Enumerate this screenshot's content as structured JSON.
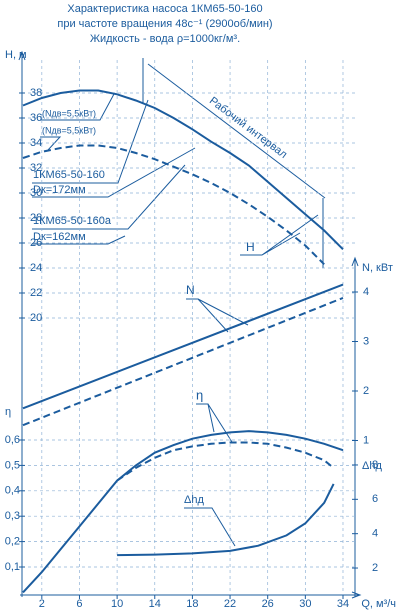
{
  "chart_data": {
    "type": "line",
    "title_lines": [
      "Характеристика насоса 1КМ65-50-160",
      "при частоте вращения 48с⁻¹ (2900об/мин)",
      "Жидкость - вода ρ=1000кг/м³."
    ],
    "x_label": "Q, м³/ч",
    "xlim": [
      0,
      35
    ],
    "xticks": [
      2,
      6,
      10,
      14,
      18,
      22,
      26,
      30,
      34
    ],
    "grid": true,
    "color": "#1b5c9e",
    "axes": [
      {
        "label": "H, м",
        "side": "left",
        "lim": [
          19,
          40
        ],
        "ticks": [
          20,
          22,
          24,
          26,
          28,
          30,
          32,
          34,
          36,
          38
        ]
      },
      {
        "label": "N, кВт",
        "side": "right",
        "lim": [
          0.8,
          4.5
        ],
        "ticks": [
          1,
          2,
          3,
          4
        ]
      },
      {
        "label": "η",
        "side": "left",
        "lim": [
          0,
          0.7
        ],
        "ticks": [
          {
            "value": 0.1,
            "label": "0,1"
          },
          {
            "value": 0.2,
            "label": "0,2"
          },
          {
            "value": 0.3,
            "label": "0,3"
          },
          {
            "value": 0.4,
            "label": "0,4"
          },
          {
            "value": 0.5,
            "label": "0,5"
          },
          {
            "value": 0.6,
            "label": "0,6"
          }
        ]
      },
      {
        "label": "Δhд",
        "side": "right",
        "lim": [
          0.5,
          9.5
        ],
        "ticks": [
          2,
          4,
          6,
          8
        ]
      }
    ],
    "series": [
      {
        "axis": 0,
        "style": "solid",
        "x": [
          0,
          2,
          4,
          6,
          8,
          10,
          12,
          14,
          16,
          18,
          20,
          22,
          24,
          26,
          28,
          30,
          32,
          34
        ],
        "values": [
          37.0,
          37.6,
          38.0,
          38.2,
          38.2,
          37.9,
          37.4,
          36.8,
          36.0,
          35.1,
          34.1,
          33.2,
          32.2,
          30.9,
          29.6,
          28.3,
          27.0,
          25.5
        ]
      },
      {
        "axis": 0,
        "style": "dashed",
        "x": [
          0,
          2,
          4,
          6,
          8,
          10,
          12,
          14,
          16,
          18,
          20,
          22,
          24,
          26,
          28,
          30,
          32
        ],
        "values": [
          32.8,
          33.3,
          33.6,
          33.8,
          33.8,
          33.6,
          33.2,
          32.7,
          32.1,
          31.5,
          30.8,
          30.0,
          29.1,
          28.1,
          27.0,
          25.8,
          24.3
        ]
      },
      {
        "axis": 1,
        "style": "solid",
        "x": [
          0,
          34
        ],
        "values": [
          1.65,
          4.15
        ]
      },
      {
        "axis": 1,
        "style": "dashed",
        "x": [
          0,
          34
        ],
        "values": [
          1.31,
          3.88
        ]
      },
      {
        "axis": 2,
        "style": "solid",
        "x": [
          0,
          2,
          4,
          6,
          8,
          10,
          12,
          14,
          16,
          18,
          20,
          22,
          24,
          26,
          28,
          30,
          32,
          34
        ],
        "values": [
          0,
          0.08,
          0.17,
          0.26,
          0.35,
          0.44,
          0.5,
          0.55,
          0.58,
          0.605,
          0.62,
          0.63,
          0.635,
          0.63,
          0.62,
          0.605,
          0.585,
          0.56
        ]
      },
      {
        "axis": 2,
        "style": "dashed",
        "x": [
          10,
          12,
          14,
          16,
          18,
          20,
          22,
          24,
          26,
          28,
          30,
          32,
          33
        ],
        "values": [
          0.44,
          0.49,
          0.53,
          0.56,
          0.575,
          0.585,
          0.59,
          0.59,
          0.585,
          0.57,
          0.55,
          0.52,
          0.49
        ]
      },
      {
        "axis": 3,
        "style": "solid",
        "x": [
          10,
          14,
          18,
          22,
          25,
          28,
          30,
          32,
          33
        ],
        "values": [
          2.75,
          2.78,
          2.85,
          3.0,
          3.3,
          3.9,
          4.6,
          5.8,
          6.9
        ]
      }
    ],
    "annotations": [
      "(Nдв=5,5кВт)",
      "(Nдв=5,5кВт)",
      "Рабочий интервал",
      "1КМ65-50-160",
      "Dк=172мм",
      "1КМ65-50-160а",
      "Dк=162мм",
      "H",
      "N",
      "η",
      "Δhд"
    ]
  }
}
